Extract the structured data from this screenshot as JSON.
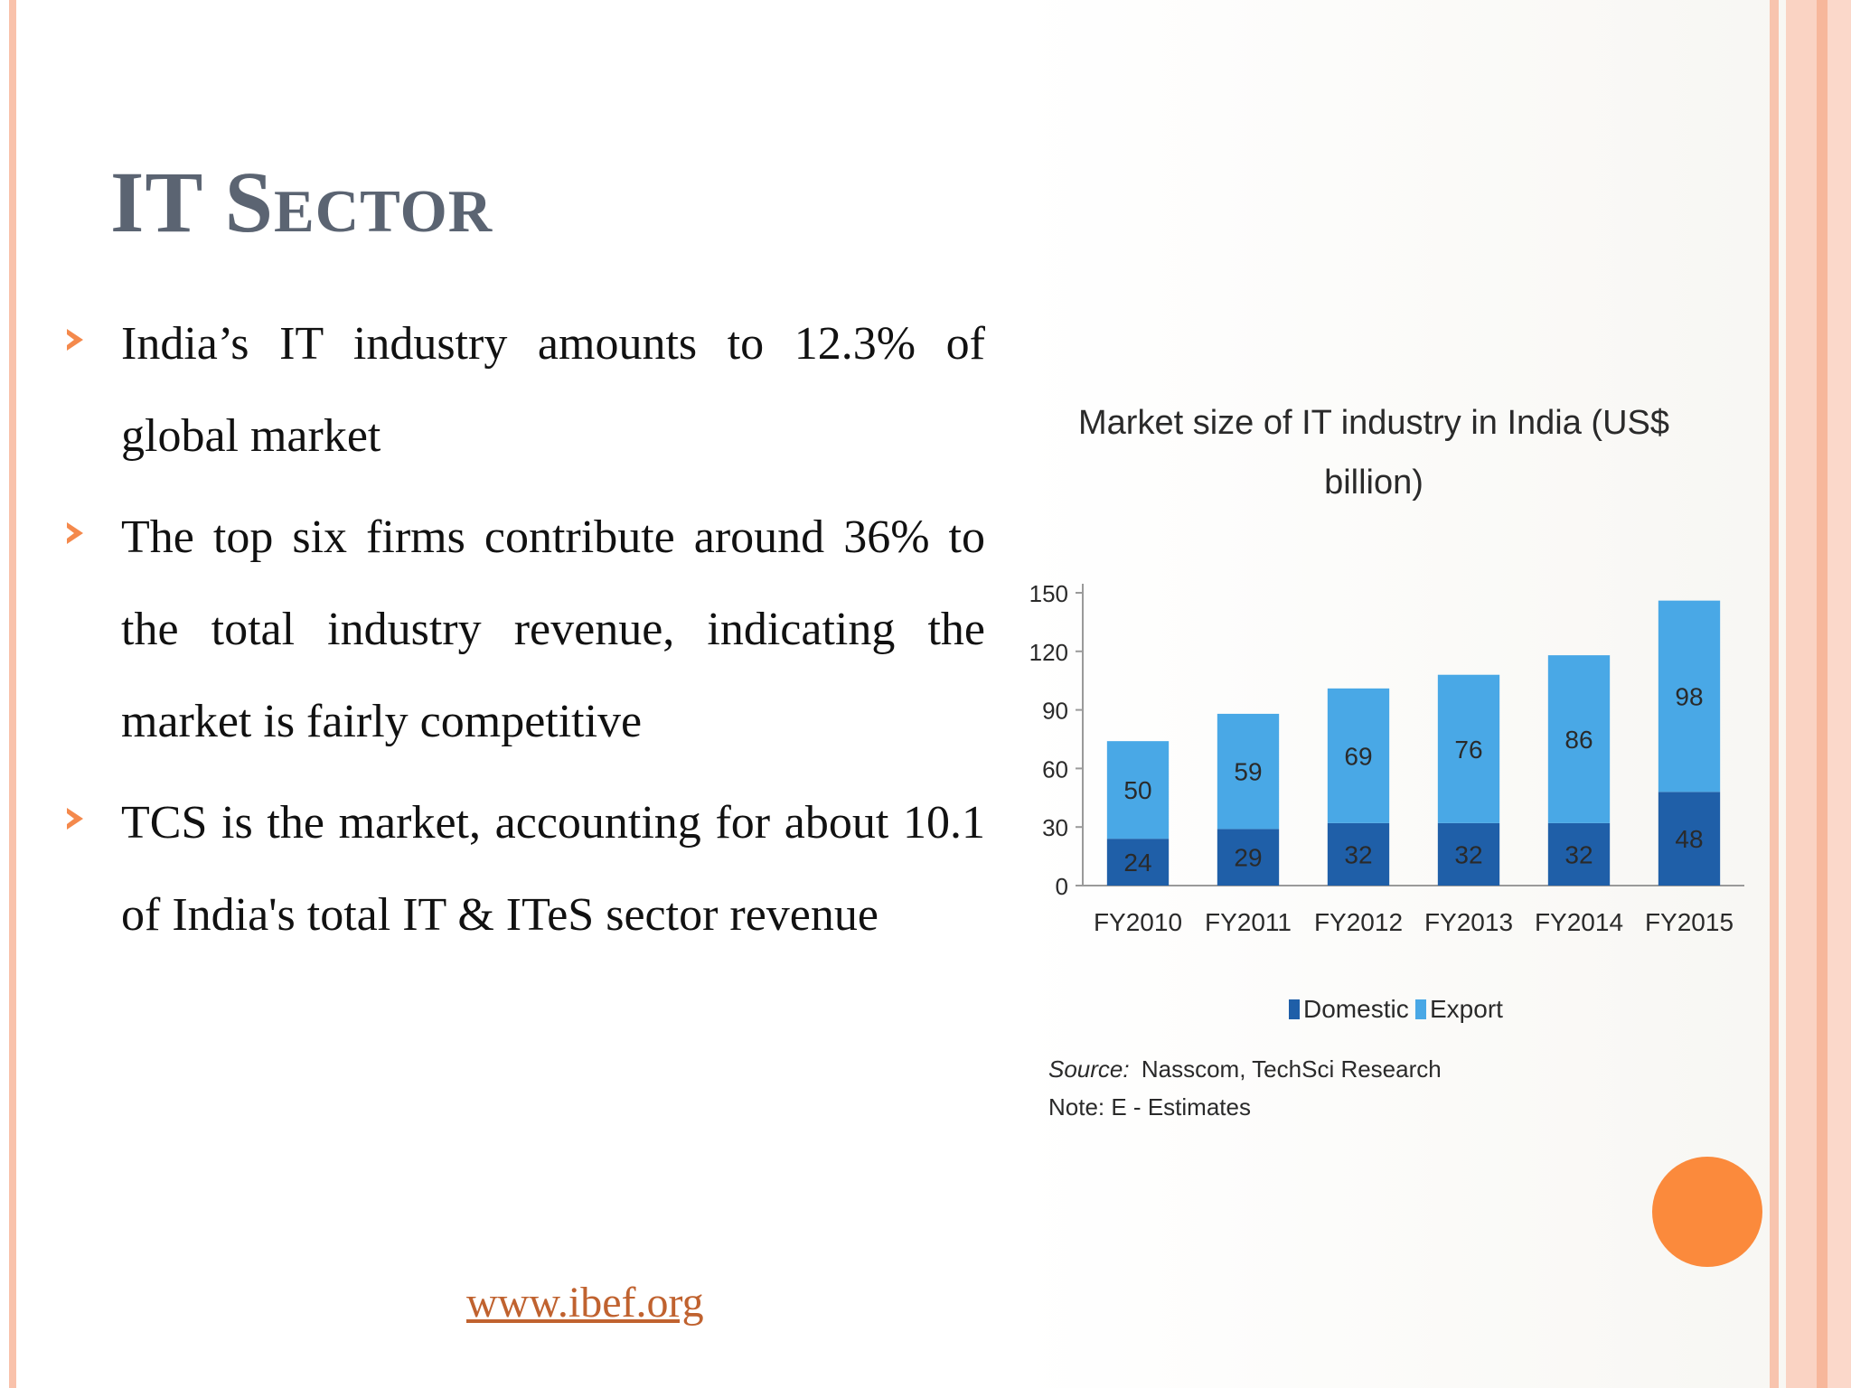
{
  "slide": {
    "title": "IT Sector",
    "bullets": [
      " India’s IT industry amounts to 12.3% of global market",
      "The top six firms contribute around 36% to the total industry revenue, indicating the market is fairly competitive",
      "TCS is the market, accounting for about 10.1 of India's total IT & ITeS  sector revenue"
    ],
    "link_text": "www.ibef.org",
    "colors": {
      "accent": "#f4894c",
      "title": "#5b6472",
      "domestic": "#1f5fa8",
      "export": "#49a8e6",
      "circle": "#fb8a3c"
    }
  },
  "chart_data": {
    "type": "bar",
    "stacked": true,
    "title": "Market size of IT industry in India (US$ billion)",
    "categories": [
      "FY2010",
      "FY2011",
      "FY2012",
      "FY2013",
      "FY2014",
      "FY2015"
    ],
    "series": [
      {
        "name": "Domestic",
        "values": [
          24,
          29,
          32,
          32,
          32,
          48
        ]
      },
      {
        "name": "Export",
        "values": [
          50,
          59,
          69,
          76,
          86,
          98
        ]
      }
    ],
    "yticks": [
      0,
      30,
      60,
      90,
      120,
      150
    ],
    "ylim": [
      0,
      150
    ],
    "xlabel": "",
    "ylabel": "",
    "legend": "bottom-center",
    "source": "Nasscom, TechSci Research",
    "source_label": "Source:",
    "note": "Note: E - Estimates"
  }
}
